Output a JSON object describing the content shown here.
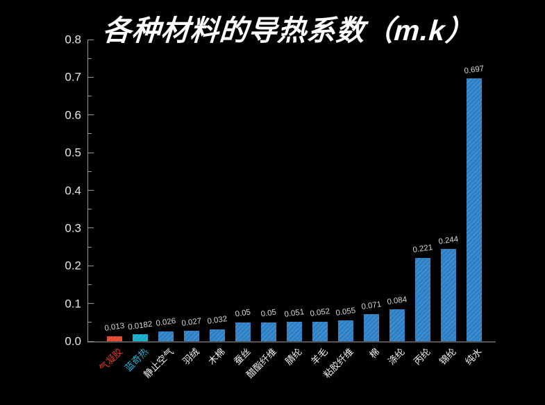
{
  "title": "各种材料的导热系数（m.k）",
  "colors": {
    "background": "#000000",
    "title_text": "#ffffff",
    "axis_line": "#9a9a9a",
    "baseline": "#555555",
    "y_tick_label": "#e8e8e8",
    "value_label": "#d8d8d8",
    "bar_default": "#2e80c6",
    "bar_aerogel": "#e04829",
    "bar_lanqire": "#17accc",
    "xlabel_default": "#f0f0f0",
    "xlabel_aerogel": "#d93b2a",
    "xlabel_lanqire": "#2bb3d4"
  },
  "chart_data": {
    "type": "bar",
    "title": "各种材料的导热系数（m.k）",
    "xlabel": "",
    "ylabel": "",
    "categories": [
      "气凝胶",
      "蓝奇热",
      "静止空气",
      "羽绒",
      "木棉",
      "蚕丝",
      "醋酯纤维",
      "腈纶",
      "羊毛",
      "粘胶纤维",
      "棉",
      "涤纶",
      "丙纶",
      "锦纶",
      "纯水"
    ],
    "values": [
      0.013,
      0.0182,
      0.026,
      0.027,
      0.032,
      0.05,
      0.05,
      0.051,
      0.052,
      0.055,
      0.071,
      0.084,
      0.221,
      0.244,
      0.697
    ],
    "value_labels": [
      "0.013",
      "0.0182",
      "0.026",
      "0.027",
      "0.032",
      "0.05",
      "0.05",
      "0.051",
      "0.052",
      "0.055",
      "0.071",
      "0.084",
      "0.221",
      "0.244",
      "0.697"
    ],
    "bar_colors": [
      "#e04829",
      "#17accc",
      "#2e80c6",
      "#2e80c6",
      "#2e80c6",
      "#2e80c6",
      "#2e80c6",
      "#2e80c6",
      "#2e80c6",
      "#2e80c6",
      "#2e80c6",
      "#2e80c6",
      "#2e80c6",
      "#2e80c6",
      "#2e80c6"
    ],
    "category_label_colors": [
      "#d93b2a",
      "#2bb3d4",
      "#f0f0f0",
      "#f0f0f0",
      "#f0f0f0",
      "#f0f0f0",
      "#f0f0f0",
      "#f0f0f0",
      "#f0f0f0",
      "#f0f0f0",
      "#f0f0f0",
      "#f0f0f0",
      "#f0f0f0",
      "#f0f0f0",
      "#f0f0f0"
    ],
    "ylim": [
      0,
      0.8
    ],
    "y_tick_labels": [
      "0.0",
      "0.1",
      "0.2",
      "0.3",
      "0.4",
      "0.5",
      "0.6",
      "0.7",
      "0.8"
    ],
    "y_minor_tick_step": 0.05,
    "x_tick_rotation_deg": 45,
    "grid": false,
    "legend": "none",
    "background": "black",
    "bar_hatch": "diagonal"
  }
}
